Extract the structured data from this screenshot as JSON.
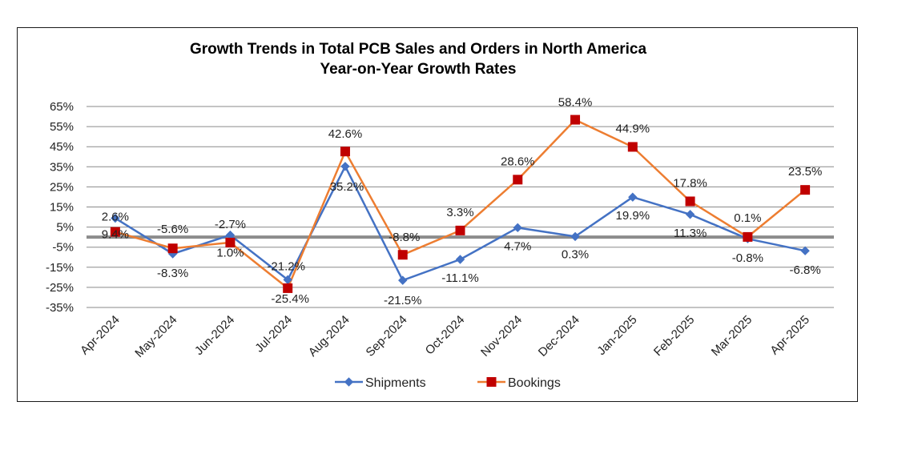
{
  "chart_data": {
    "type": "line",
    "title": "Growth Trends in Total PCB Sales and Orders in North America",
    "subtitle": "Year-on-Year Growth Rates",
    "xlabel": "",
    "ylabel": "",
    "ylim": [
      -35,
      65
    ],
    "ytick_step": 10,
    "ytick_labels": [
      "65%",
      "55%",
      "45%",
      "35%",
      "25%",
      "15%",
      "5%",
      "-5%",
      "-15%",
      "-25%",
      "-35%"
    ],
    "grid": true,
    "legend_position": "bottom",
    "categories": [
      "Apr-2024",
      "May-2024",
      "Jun-2024",
      "Jul-2024",
      "Aug-2024",
      "Sep-2024",
      "Oct-2024",
      "Nov-2024",
      "Dec-2024",
      "Jan-2025",
      "Feb-2025",
      "Mar-2025",
      "Apr-2025"
    ],
    "series": [
      {
        "name": "Shipments",
        "line_color": "#4472C4",
        "marker": "diamond",
        "values": [
          9.4,
          -8.3,
          1.0,
          -21.2,
          35.2,
          -21.5,
          -11.1,
          4.7,
          0.3,
          19.9,
          11.3,
          -0.8,
          -6.8
        ],
        "labels": [
          "9.4%",
          "-8.3%",
          "1.0%",
          "-21.2%",
          "35.2%",
          "-21.5%",
          "-11.1%",
          "4.7%",
          "0.3%",
          "19.9%",
          "11.3%",
          "-0.8%",
          "-6.8%"
        ]
      },
      {
        "name": "Bookings",
        "line_color": "#ED7D31",
        "marker_color": "#C00000",
        "marker": "square",
        "values": [
          2.6,
          -5.6,
          -2.7,
          -25.4,
          42.6,
          -8.8,
          3.3,
          28.6,
          58.4,
          44.9,
          17.8,
          0.1,
          23.5
        ],
        "labels": [
          "2.6%",
          "-5.6%",
          "-2.7%",
          "-25.4%",
          "42.6%",
          "-8.8%",
          "3.3%",
          "28.6%",
          "58.4%",
          "44.9%",
          "17.8%",
          "0.1%",
          "23.5%"
        ]
      }
    ],
    "reference_line": {
      "value": 0,
      "color": "#8C8C8C"
    }
  }
}
